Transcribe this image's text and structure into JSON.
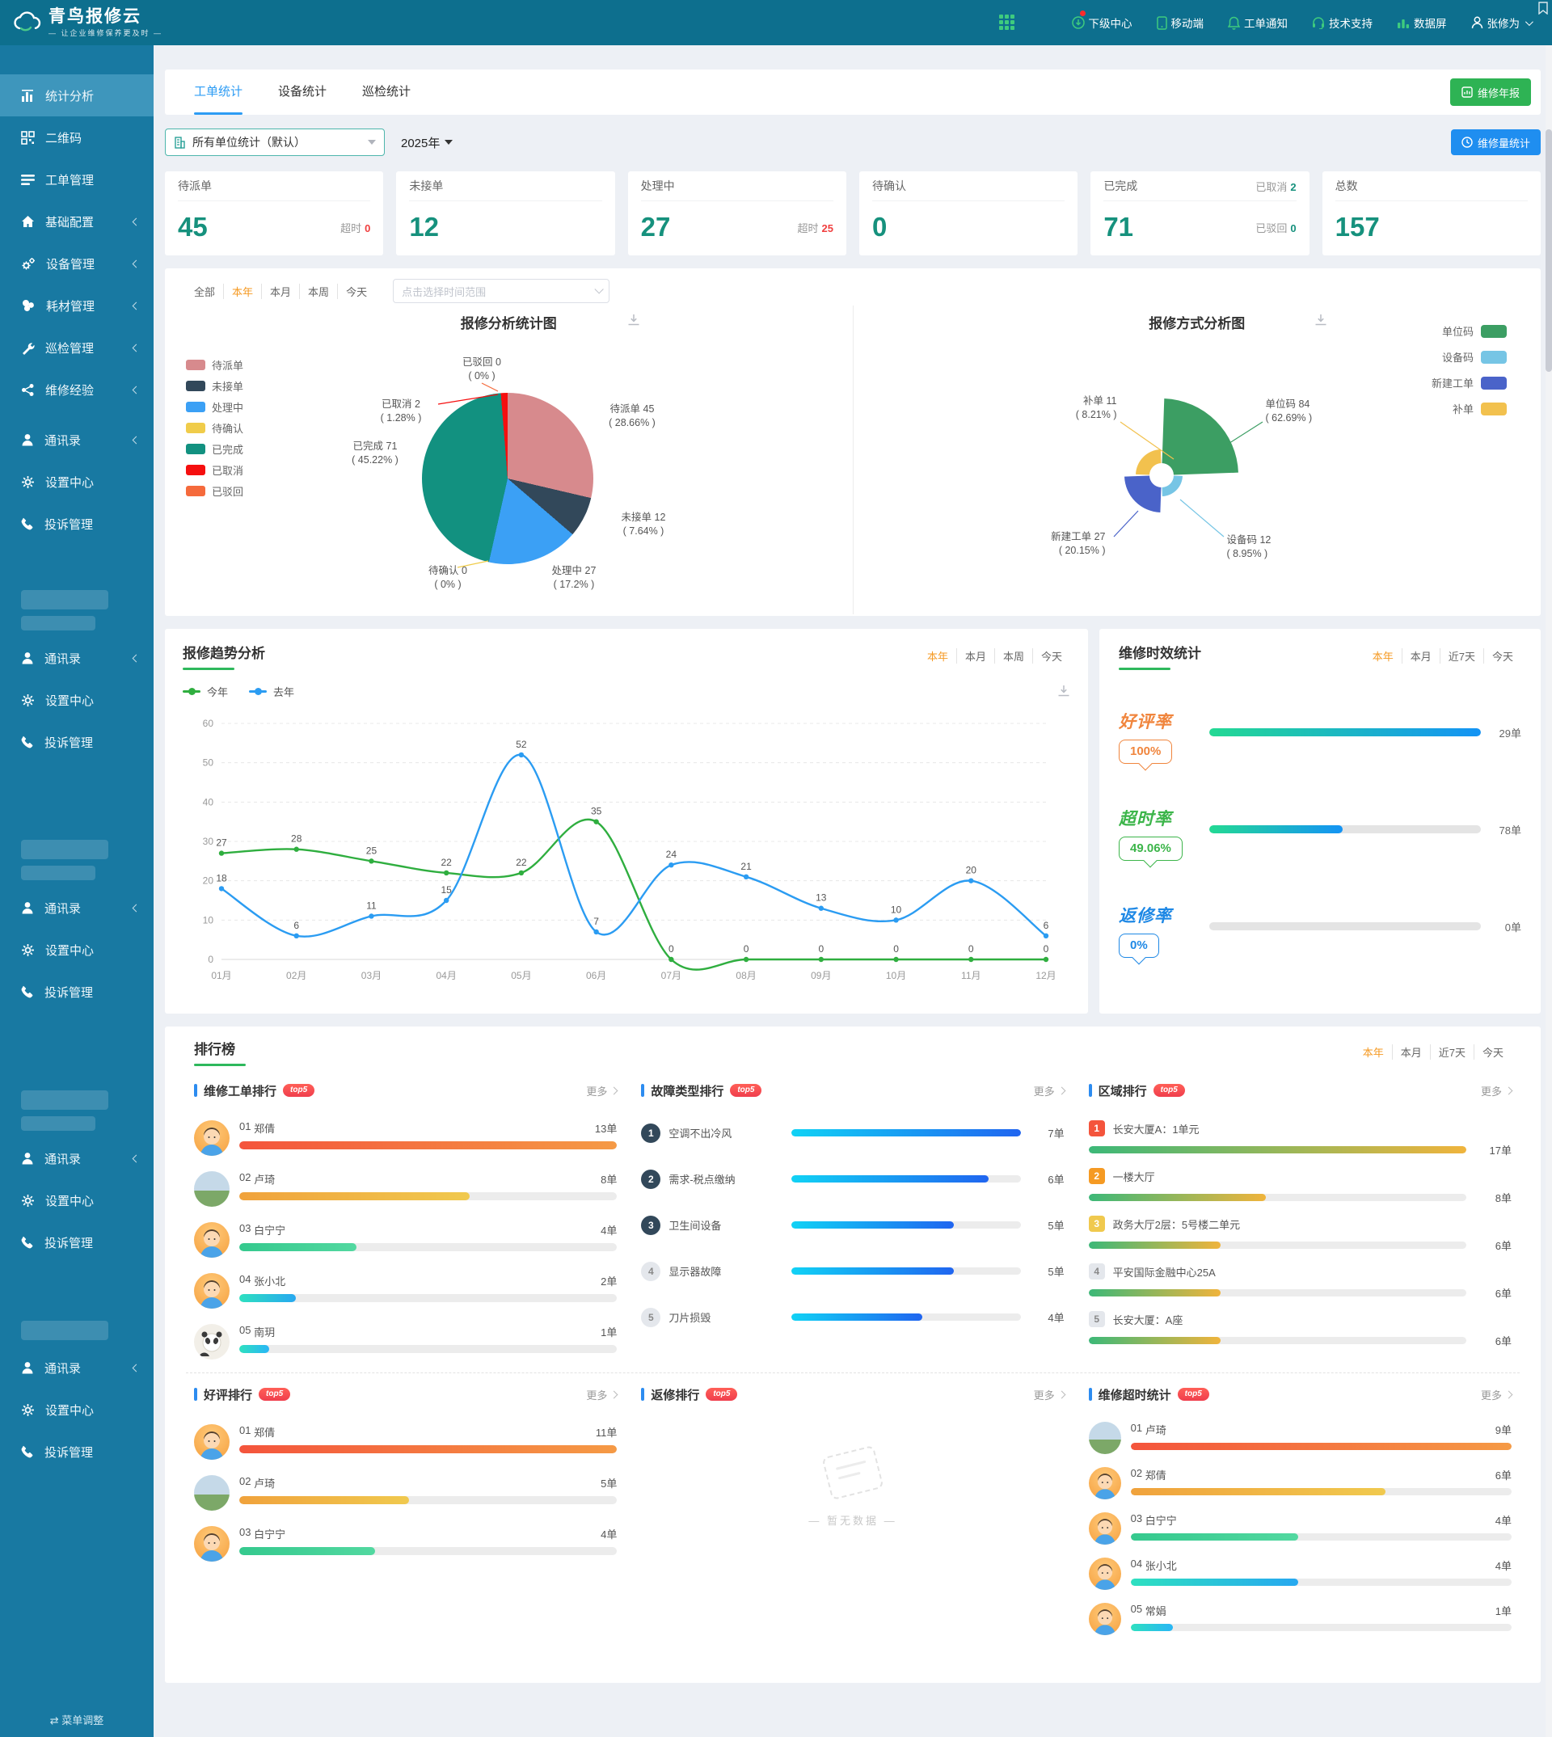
{
  "header": {
    "logo_title": "青鸟报修云",
    "logo_subtitle": "— 让企业维修保养更及时 —",
    "nav": [
      {
        "label": "下级中心"
      },
      {
        "label": "移动端"
      },
      {
        "label": "工单通知"
      },
      {
        "label": "技术支持"
      },
      {
        "label": "数据屏"
      },
      {
        "label": "张修为"
      }
    ]
  },
  "sidebar": {
    "items": [
      {
        "label": "统计分析"
      },
      {
        "label": "二维码"
      },
      {
        "label": "工单管理"
      },
      {
        "label": "基础配置"
      },
      {
        "label": "设备管理"
      },
      {
        "label": "耗材管理"
      },
      {
        "label": "巡检管理"
      },
      {
        "label": "维修经验"
      }
    ],
    "group": {
      "contacts": "通讯录",
      "settings": "设置中心",
      "complaints": "投诉管理"
    },
    "footer": "菜单调整"
  },
  "tabs": [
    {
      "label": "工单统计"
    },
    {
      "label": "设备统计"
    },
    {
      "label": "巡检统计"
    }
  ],
  "toolbar": {
    "annual_report": "维修年报",
    "unit_filter": "所有单位统计（默认）",
    "year": "2025年",
    "volume_stats": "维修量统计"
  },
  "stat_cards": {
    "c1": {
      "title": "待派单",
      "value": "45",
      "extra_label": "超时",
      "extra_value": "0"
    },
    "c2": {
      "title": "未接单",
      "value": "12"
    },
    "c3": {
      "title": "处理中",
      "value": "27",
      "extra_label": "超时",
      "extra_value": "25"
    },
    "c4": {
      "title": "待确认",
      "value": "0"
    },
    "c5": {
      "title": "已完成",
      "value": "71",
      "top_label": "已取消",
      "top_value": "2",
      "extra_label": "已驳回",
      "extra_value": "0"
    },
    "c6": {
      "title": "总数",
      "value": "157"
    }
  },
  "charts_card": {
    "filters": [
      "全部",
      "本年",
      "本月",
      "本周",
      "今天"
    ],
    "active_filter": "本年",
    "date_placeholder": "点击选择时间范围"
  },
  "trend": {
    "title": "报修趋势分析",
    "filters": [
      "本年",
      "本月",
      "本周",
      "今天"
    ]
  },
  "timeliness": {
    "title": "维修时效统计",
    "filters": [
      "本年",
      "本月",
      "近7天",
      "今天"
    ],
    "rows": [
      {
        "name": "好评率",
        "badge": "100%",
        "count": "29单",
        "pct": 100,
        "color": "#f0853d",
        "colors": [
          "#23d993",
          "#1493f5"
        ]
      },
      {
        "name": "超时率",
        "badge": "49.06%",
        "count": "78单",
        "pct": 49,
        "color": "#3cb54a",
        "colors": [
          "#23d993",
          "#1493f5"
        ]
      },
      {
        "name": "返修率",
        "badge": "0%",
        "count": "0单",
        "pct": 0,
        "color": "#1e88e5",
        "colors": [
          "#23d993",
          "#1493f5"
        ]
      }
    ]
  },
  "rankings": {
    "title": "排行榜",
    "filters": [
      "本年",
      "本月",
      "近7天",
      "今天"
    ],
    "more": "更多",
    "top_badge": "top5",
    "repair": {
      "title": "维修工单排行",
      "rows": [
        {
          "rank": "01",
          "name": "郑倩",
          "count": "13单",
          "pct": 100,
          "colors": [
            "#f4543c",
            "#f59a45"
          ]
        },
        {
          "rank": "02",
          "name": "卢琦",
          "count": "8单",
          "pct": 61,
          "colors": [
            "#f0a23c",
            "#f0c94e"
          ]
        },
        {
          "rank": "03",
          "name": "白宁宁",
          "count": "4单",
          "pct": 31,
          "colors": [
            "#35c98e",
            "#52d8a0"
          ]
        },
        {
          "rank": "04",
          "name": "张小北",
          "count": "2单",
          "pct": 15,
          "colors": [
            "#2ee0c0",
            "#27a8f0"
          ]
        },
        {
          "rank": "05",
          "name": "南玥",
          "count": "1单",
          "pct": 8,
          "colors": [
            "#2ee0c0",
            "#29b6f6"
          ]
        }
      ]
    },
    "fault": {
      "title": "故障类型排行",
      "rows": [
        {
          "rank": "1",
          "label": "空调不出冷风",
          "count": "7单",
          "pct": 100,
          "badge": "#32485a",
          "badge_fg": "#fff",
          "colors": [
            "#11d2f5",
            "#2065f0"
          ]
        },
        {
          "rank": "2",
          "label": "需求-税点缴纳",
          "count": "6单",
          "pct": 86,
          "badge": "#32485a",
          "badge_fg": "#fff",
          "colors": [
            "#11d2f5",
            "#2065f0"
          ]
        },
        {
          "rank": "3",
          "label": "卫生间设备",
          "count": "5单",
          "pct": 71,
          "badge": "#32485a",
          "badge_fg": "#fff",
          "colors": [
            "#11d2f5",
            "#2065f0"
          ]
        },
        {
          "rank": "4",
          "label": "显示器故障",
          "count": "5单",
          "pct": 71,
          "badge": "#e4e7ec",
          "badge_fg": "#888",
          "colors": [
            "#11d2f5",
            "#2065f0"
          ]
        },
        {
          "rank": "5",
          "label": "刀片损毁",
          "count": "4单",
          "pct": 57,
          "badge": "#e4e7ec",
          "badge_fg": "#888",
          "colors": [
            "#11d2f5",
            "#2065f0"
          ]
        }
      ]
    },
    "region": {
      "title": "区域排行",
      "rows": [
        {
          "rank": "1",
          "label": "长安大厦A：1单元",
          "count": "17单",
          "pct": 100,
          "badge": "#f4543c",
          "badge_fg": "#fff",
          "colors": [
            "#3cb878",
            "#f0b43c"
          ]
        },
        {
          "rank": "2",
          "label": "一楼大厅",
          "count": "8单",
          "pct": 47,
          "badge": "#f59a23",
          "badge_fg": "#fff",
          "colors": [
            "#3cb878",
            "#f0b43c"
          ]
        },
        {
          "rank": "3",
          "label": "政务大厅2层：5号楼二单元",
          "count": "6单",
          "pct": 35,
          "badge": "#f0c94e",
          "badge_fg": "#fff",
          "colors": [
            "#3cb878",
            "#f0b43c"
          ]
        },
        {
          "rank": "4",
          "label": "平安国际金融中心25A",
          "count": "6单",
          "pct": 35,
          "badge": "#e4e7ec",
          "badge_fg": "#888",
          "colors": [
            "#3cb878",
            "#f0b43c"
          ]
        },
        {
          "rank": "5",
          "label": "长安大厦：A座",
          "count": "6单",
          "pct": 35,
          "badge": "#e4e7ec",
          "badge_fg": "#888",
          "colors": [
            "#3cb878",
            "#f0b43c"
          ]
        }
      ]
    },
    "praise": {
      "title": "好评排行",
      "rows": [
        {
          "rank": "01",
          "name": "郑倩",
          "count": "11单",
          "pct": 100,
          "colors": [
            "#f4543c",
            "#f59a45"
          ]
        },
        {
          "rank": "02",
          "name": "卢琦",
          "count": "5单",
          "pct": 45,
          "colors": [
            "#f0a23c",
            "#f0c94e"
          ]
        },
        {
          "rank": "03",
          "name": "白宁宁",
          "count": "4单",
          "pct": 36,
          "colors": [
            "#35c98e",
            "#52d8a0"
          ]
        }
      ]
    },
    "returns": {
      "title": "返修排行",
      "empty": "— 暂无数据 —"
    },
    "overtime": {
      "title": "维修超时统计",
      "rows": [
        {
          "rank": "01",
          "name": "卢琦",
          "count": "9单",
          "pct": 100,
          "colors": [
            "#f4543c",
            "#f59a45"
          ]
        },
        {
          "rank": "02",
          "name": "郑倩",
          "count": "6单",
          "pct": 67,
          "colors": [
            "#f0a23c",
            "#f0c94e"
          ]
        },
        {
          "rank": "03",
          "name": "白宁宁",
          "count": "4单",
          "pct": 44,
          "colors": [
            "#35c98e",
            "#52d8a0"
          ]
        },
        {
          "rank": "04",
          "name": "张小北",
          "count": "4单",
          "pct": 44,
          "colors": [
            "#2ee0c0",
            "#27a8f0"
          ]
        },
        {
          "rank": "05",
          "name": "常娟",
          "count": "1单",
          "pct": 11,
          "colors": [
            "#2ee0c0",
            "#29b6f6"
          ]
        }
      ]
    }
  },
  "chart_data": [
    {
      "type": "pie",
      "title": "报修分析统计图",
      "labels": [
        "待派单",
        "未接单",
        "处理中",
        "待确认",
        "已完成",
        "已取消",
        "已驳回"
      ],
      "values": [
        45,
        12,
        27,
        0,
        71,
        2,
        0
      ],
      "percents": [
        "28.66%",
        "7.64%",
        "17.2%",
        "0%",
        "45.22%",
        "1.28%",
        "0%"
      ],
      "colors": [
        "#d78a8d",
        "#32485a",
        "#3ba0f5",
        "#f0cc4a",
        "#129180",
        "#f50f0f",
        "#f56a3c"
      ],
      "legend_position": "left",
      "total": 157
    },
    {
      "type": "pie",
      "subtype": "nightingale",
      "title": "报修方式分析图",
      "labels": [
        "单位码",
        "设备码",
        "新建工单",
        "补单"
      ],
      "values": [
        84,
        12,
        27,
        11
      ],
      "percents": [
        "62.69%",
        "8.95%",
        "20.15%",
        "8.21%"
      ],
      "colors": [
        "#3c9e63",
        "#76c5e5",
        "#4a63c9",
        "#f2c14e"
      ],
      "legend_position": "right"
    },
    {
      "type": "line",
      "title": "报修趋势分析",
      "x": [
        "01月",
        "02月",
        "03月",
        "04月",
        "05月",
        "06月",
        "07月",
        "08月",
        "09月",
        "10月",
        "11月",
        "12月"
      ],
      "series": [
        {
          "name": "今年",
          "color": "#2fae3f",
          "values": [
            27,
            28,
            25,
            22,
            22,
            35,
            0,
            0,
            0,
            0,
            0,
            0
          ]
        },
        {
          "name": "去年",
          "color": "#2b9cf2",
          "values": [
            18,
            6,
            11,
            15,
            52,
            7,
            24,
            21,
            13,
            10,
            20,
            6
          ]
        }
      ],
      "ylim": [
        0,
        60
      ],
      "yticks": [
        0,
        10,
        20,
        30,
        40,
        50,
        60
      ],
      "grid": "dashed",
      "legend_position": "top-left"
    }
  ]
}
